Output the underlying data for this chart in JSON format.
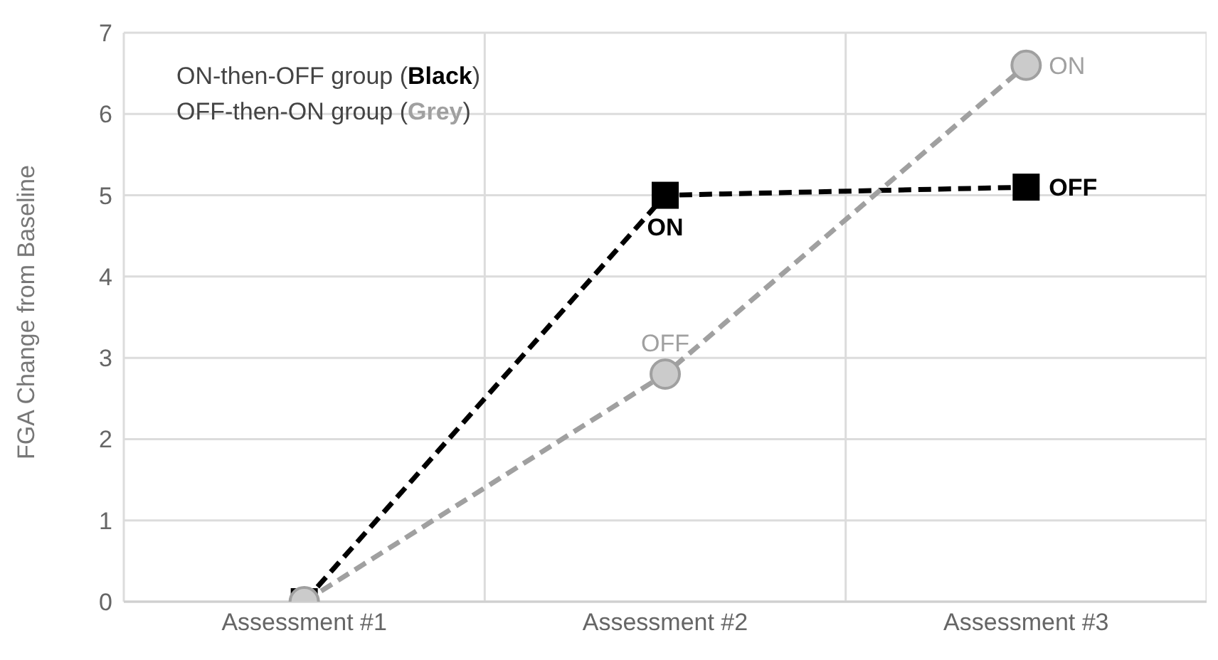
{
  "chart_data": {
    "type": "line",
    "ylabel": "FGA Change from Baseline",
    "categories": [
      "Assessment #1",
      "Assessment #2",
      "Assessment #3"
    ],
    "series": [
      {
        "color": "#000000",
        "values": [
          0,
          5.0,
          5.1
        ],
        "marker": "square"
      },
      {
        "color": "#a0a0a0",
        "values": [
          0,
          2.8,
          6.6
        ],
        "marker": "circle"
      }
    ],
    "annotations": [
      "ON-then-OFF group (Black)",
      "OFF-then-ON group (Grey)",
      {
        "text": "ON",
        "x": "Assessment #2",
        "y": 5.0
      },
      {
        "text": "OFF",
        "x": "Assessment #3",
        "y": 5.1
      },
      {
        "text": "OFF",
        "x": "Assessment #2",
        "y": 2.8
      },
      {
        "text": "ON",
        "x": "Assessment #3",
        "y": 6.6
      }
    ],
    "ylim": [
      0,
      7
    ],
    "yticks": [
      0,
      1,
      2,
      3,
      4,
      5,
      6,
      7
    ],
    "grid": true,
    "line_style": "dashed"
  }
}
